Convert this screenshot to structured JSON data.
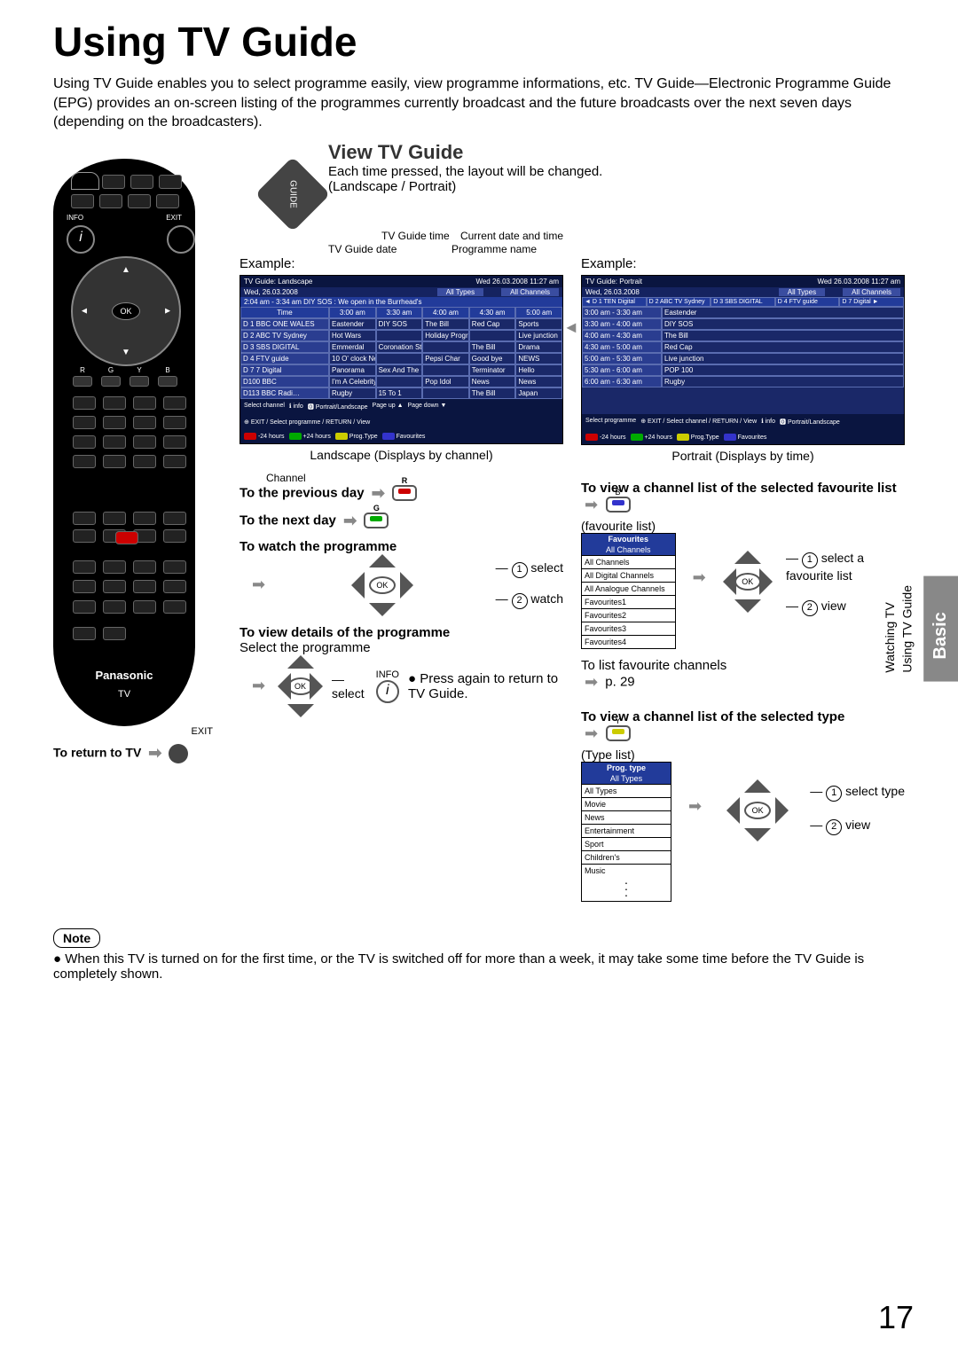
{
  "title": "Using TV Guide",
  "intro": "Using TV Guide enables you to select programme easily, view programme informations, etc. TV Guide—Electronic Programme Guide (EPG) provides an on-screen listing of the programmes currently broadcast and the future broadcasts over the next seven days (depending on the broadcasters).",
  "view_section": {
    "heading": "View TV Guide",
    "desc1": "Each time pressed, the layout will be changed.",
    "desc2": "(Landscape / Portrait)",
    "guide_btn": "GUIDE"
  },
  "labels": {
    "current_dt": "Current date and time",
    "guide_time": "TV Guide time",
    "guide_date": "TV Guide date",
    "prog_name": "Programme name",
    "example": "Example:",
    "landscape_caption": "Landscape (Displays by channel)",
    "portrait_caption": "Portrait (Displays by time)",
    "channel": "Channel"
  },
  "landscape": {
    "title_left": "TV Guide: Landscape",
    "time": "Wed 26.03.2008 11:27 am",
    "date": "Wed, 26.03.2008",
    "types_btn": "All Types",
    "chans_btn": "All Channels",
    "cur_prog_line": "2:04 am - 3:34 am  DIY SOS : We open in the Burrhead's",
    "time_hdr": [
      "Time",
      "3:00 am",
      "3:30 am",
      "4:00 am",
      "4:30 am",
      "5:00 am"
    ],
    "rows": [
      {
        "ch": "D  1 BBC ONE WALES",
        "cells": [
          "Eastender",
          "DIY SOS",
          "The Bill",
          "Red Cap",
          "Sports"
        ]
      },
      {
        "ch": "D  2 ABC TV Sydney",
        "cells": [
          "Hot Wars",
          "",
          "Holiday Program",
          "",
          "Live junction"
        ]
      },
      {
        "ch": "D  3 SBS DIGITAL",
        "cells": [
          "Emmerdal",
          "Coronation Street",
          "",
          "The Bill",
          "Drama"
        ]
      },
      {
        "ch": "D  4 FTV guide",
        "cells": [
          "10 O' clock News BBC",
          "",
          "Pepsi Char",
          "Good bye",
          "NEWS"
        ]
      },
      {
        "ch": "D  7 7 Digital",
        "cells": [
          "Panorama",
          "Sex And The City",
          "",
          "Terminator",
          "Hello"
        ]
      },
      {
        "ch": "D100 BBC",
        "cells": [
          "I'm A Celebrity",
          "",
          "Pop Idol",
          "News",
          "News"
        ]
      },
      {
        "ch": "D113 BBC Radi…",
        "cells": [
          "Rugby",
          "15 To 1",
          "",
          "The Bill",
          "Japan"
        ]
      }
    ],
    "footer_hint": "Select channel",
    "footer_items": [
      "info",
      "Portrait/Landscape",
      "Page up",
      "Page down",
      "-24 hours",
      "+24 hours",
      "Prog.Type",
      "Favourites"
    ],
    "footer_nav": [
      "EXIT",
      "Select programme",
      "RETURN",
      "View"
    ]
  },
  "portrait": {
    "title_left": "TV Guide: Portrait",
    "time": "Wed 26.03.2008 11:27 am",
    "date": "Wed, 26.03.2008",
    "types_btn": "All Types",
    "chans_btn": "All Channels",
    "ch_tabs": [
      "D  1 TEN Digital",
      "D  2 ABC TV Sydney",
      "D  3 SBS DIGITAL",
      "D  4 FTV guide",
      "D  7 Digital"
    ],
    "rows": [
      [
        "3:00 am - 3:30 am",
        "Eastender"
      ],
      [
        "3:30 am - 4:00 am",
        "DIY SOS"
      ],
      [
        "4:00 am - 4:30 am",
        "The Bill"
      ],
      [
        "4:30 am - 5:00 am",
        "Red Cap"
      ],
      [
        "5:00 am - 5:30 am",
        "Live junction"
      ],
      [
        "5:30 am - 6:00 am",
        "POP 100"
      ],
      [
        "6:00 am - 6:30 am",
        "Rugby"
      ]
    ],
    "footer_hint": "Select programme",
    "footer_items": [
      "info",
      "Portrait/Landscape",
      "-24 hours",
      "+24 hours",
      "Prog.Type",
      "Favourites"
    ],
    "footer_nav": [
      "EXIT",
      "Select channel",
      "RETURN",
      "View"
    ]
  },
  "ops": {
    "prev_day": "To the previous day",
    "next_day": "To the next day",
    "watch_prog": "To watch the programme",
    "step_select": "select",
    "step_watch": "watch",
    "view_details": "To view details of the programme",
    "select_prog": "Select the programme",
    "press_again": "Press again to return to TV Guide.",
    "info_label": "INFO",
    "r": "R",
    "g": "G",
    "b": "B",
    "y": "Y"
  },
  "fav_section": {
    "heading": "To view a channel list of the selected favourite list",
    "list_label": "(favourite list)",
    "box_hdr": "Favourites",
    "box_sub": "All Channels",
    "rows": [
      "All Channels",
      "All Digital Channels",
      "All Analogue Channels",
      "Favourites1",
      "Favourites2",
      "Favourites3",
      "Favourites4"
    ],
    "step1": "select a favourite list",
    "step2": "view",
    "tip": "To list favourite channels",
    "tip_ref": "p. 29"
  },
  "type_section": {
    "heading": "To view a channel list of the selected type",
    "list_label": "(Type list)",
    "box_hdr": "Prog. type",
    "box_sub": "All Types",
    "rows": [
      "All Types",
      "Movie",
      "News",
      "Entertainment",
      "Sport",
      "Children's",
      "Music"
    ],
    "step1": "select type",
    "step2": "view"
  },
  "return_tv": "To return to TV",
  "exit_label": "EXIT",
  "remote": {
    "brand": "Panasonic",
    "tv": "TV",
    "info": "INFO",
    "exit": "EXIT",
    "guide": "GUIDE",
    "ok": "OK",
    "colors": [
      "R",
      "G",
      "Y",
      "B"
    ]
  },
  "sidebar": {
    "basic": "Basic",
    "watching": "Watching TV",
    "using": "Using TV Guide"
  },
  "note": {
    "label": "Note",
    "text": "When this TV is turned on for the first time, or the TV is switched off for more than a week, it may take some time before the TV Guide is completely shown."
  },
  "page_num": "17"
}
